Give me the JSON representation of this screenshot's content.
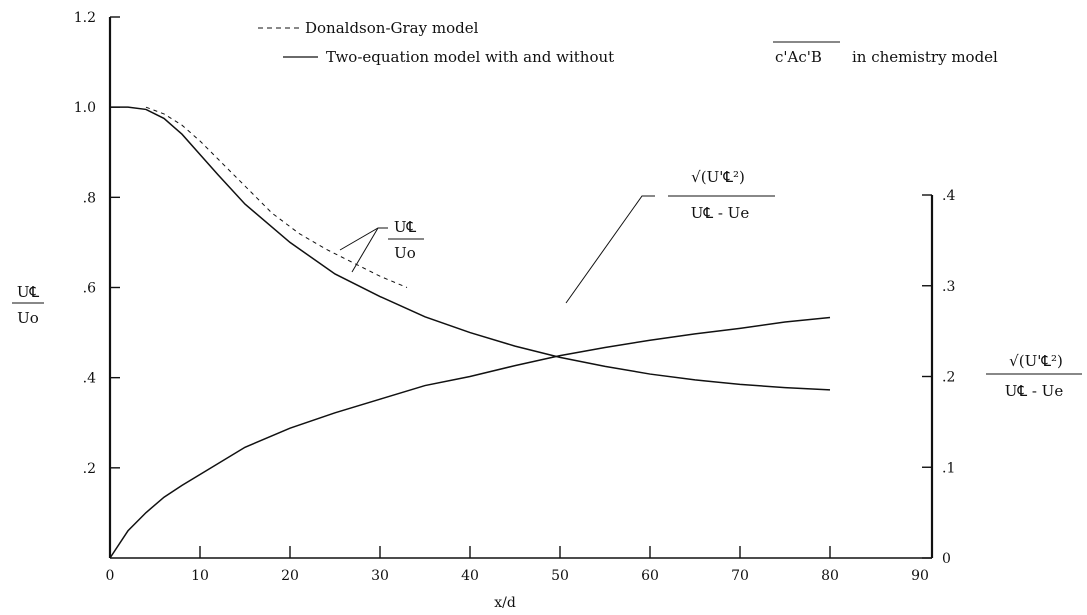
{
  "chart_data": {
    "type": "line",
    "title": "",
    "xlabel": "x/d",
    "xlim": [
      0,
      90
    ],
    "x_ticks": [
      0,
      10,
      20,
      30,
      40,
      50,
      60,
      70,
      80,
      90
    ],
    "x_tick_labels": [
      "0",
      "10",
      "20",
      "30",
      "40",
      "50",
      "60",
      "70",
      "80",
      "90"
    ],
    "y_left": {
      "label_num": "U℄",
      "label_den": "Uo",
      "lim": [
        0,
        1.2
      ],
      "ticks": [
        0.2,
        0.4,
        0.6,
        0.8,
        1.0,
        1.2
      ],
      "tick_labels": [
        ".2",
        ".4",
        ".6",
        ".8",
        "1.0",
        "1.2"
      ]
    },
    "y_right": {
      "label_num": "√(U'℄²)",
      "label_den": "U℄ - Ue",
      "lim": [
        0,
        0.4
      ],
      "ticks": [
        0,
        0.1,
        0.2,
        0.3,
        0.4
      ],
      "tick_labels": [
        "0",
        ".1",
        ".2",
        ".3",
        ".4"
      ]
    },
    "legend": {
      "placement": "top",
      "entries": [
        {
          "style": "dashed",
          "label": "Donaldson-Gray model"
        },
        {
          "style": "solid",
          "label": "Two-equation model with and without",
          "overline_term": "c'Ac'B",
          "suffix": "in chemistry model"
        }
      ]
    },
    "series": [
      {
        "name": "Two-equation model with and without c'Ac'B in chemistry model",
        "style": "solid",
        "axis": "left",
        "x": [
          0,
          2,
          4,
          6,
          8,
          10,
          12,
          15,
          20,
          25,
          30,
          35,
          40,
          45,
          50,
          55,
          60,
          65,
          70,
          75,
          80
        ],
        "y": [
          1.0,
          1.0,
          0.995,
          0.975,
          0.94,
          0.895,
          0.85,
          0.785,
          0.7,
          0.63,
          0.58,
          0.535,
          0.5,
          0.47,
          0.445,
          0.425,
          0.408,
          0.395,
          0.385,
          0.378,
          0.373
        ]
      },
      {
        "name": "Donaldson-Gray model",
        "style": "dashed",
        "axis": "left",
        "x": [
          4,
          6,
          8,
          10,
          12,
          15,
          18,
          21,
          24,
          27,
          30,
          33
        ],
        "y": [
          1.0,
          0.985,
          0.96,
          0.925,
          0.885,
          0.825,
          0.765,
          0.72,
          0.685,
          0.655,
          0.625,
          0.6
        ]
      },
      {
        "name": "Two-equation model with and without c'Ac'B in chemistry model",
        "style": "solid",
        "axis": "right",
        "x": [
          0,
          2,
          4,
          6,
          8,
          10,
          15,
          20,
          25,
          30,
          35,
          40,
          45,
          50,
          55,
          60,
          65,
          70,
          75,
          80
        ],
        "y": [
          0.0,
          0.03,
          0.05,
          0.067,
          0.08,
          0.092,
          0.122,
          0.143,
          0.16,
          0.175,
          0.19,
          0.2,
          0.212,
          0.223,
          0.232,
          0.24,
          0.247,
          0.253,
          0.26,
          0.265
        ]
      }
    ],
    "annotations": [
      {
        "num": "U℄",
        "den": "Uo"
      },
      {
        "num": "√(U'℄²)",
        "den": "U℄ - Ue"
      }
    ]
  }
}
